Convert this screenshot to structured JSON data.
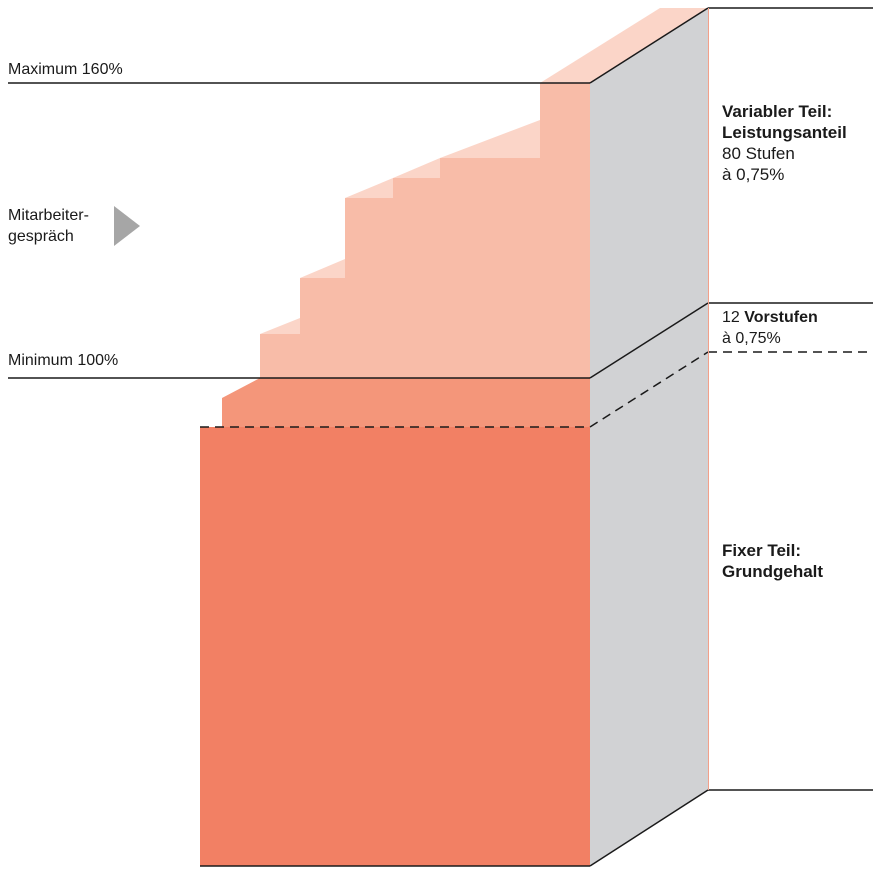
{
  "labels": {
    "maximum": "Maximum 160%",
    "minimum": "Minimum 100%",
    "mitarbeiter_line1": "Mitarbeiter-",
    "mitarbeiter_line2": "gespräch",
    "variable_title_line1": "Variabler Teil:",
    "variable_title_line2": "Leistungsanteil",
    "variable_steps": "80 Stufen",
    "variable_rate": "à 0,75%",
    "vorstufen_count": "12",
    "vorstufen_word": "Vorstufen",
    "vorstufen_rate": "à 0,75%",
    "fixed_title_line1": "Fixer Teil:",
    "fixed_title_line2": "Grundgehalt"
  },
  "colors": {
    "fixed_block": "#f28064",
    "pre_steps": "#f4967a",
    "variable_steps": "#f8bca8",
    "step_top_faces": "#fbd5c8",
    "side_face": "#d1d2d4",
    "lines": "#1a1a1a",
    "arrow": "#a6a6a6"
  },
  "icons": {
    "arrow": "triangle-right-icon"
  }
}
